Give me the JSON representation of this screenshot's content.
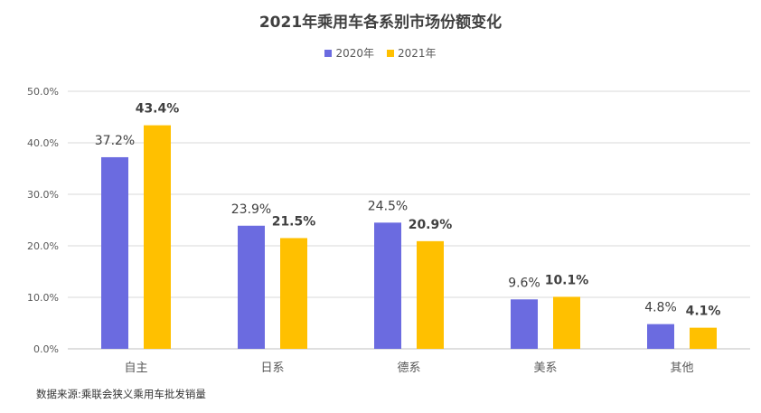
{
  "chart_data": {
    "type": "bar",
    "title": "2021年乘用车各系别市场份额变化",
    "categories": [
      "自主",
      "日系",
      "德系",
      "美系",
      "其他"
    ],
    "series": [
      {
        "name": "2020年",
        "values": [
          37.2,
          23.9,
          24.5,
          9.6,
          4.8
        ],
        "labels": [
          "37.2%",
          "23.9%",
          "24.5%",
          "9.6%",
          "4.8%"
        ],
        "color": "#6B6BE0"
      },
      {
        "name": "2021年",
        "values": [
          43.4,
          21.5,
          20.9,
          10.1,
          4.1
        ],
        "labels": [
          "43.4%",
          "21.5%",
          "20.9%",
          "10.1%",
          "4.1%"
        ],
        "color": "#FFC000"
      }
    ],
    "yticks": [
      "0.0%",
      "10.0%",
      "20.0%",
      "30.0%",
      "40.0%",
      "50.0%"
    ],
    "ylim": [
      0,
      50
    ],
    "grid": true,
    "legend_position": "top"
  },
  "source_note": "数据来源:乘联会狭义乘用车批发销量"
}
